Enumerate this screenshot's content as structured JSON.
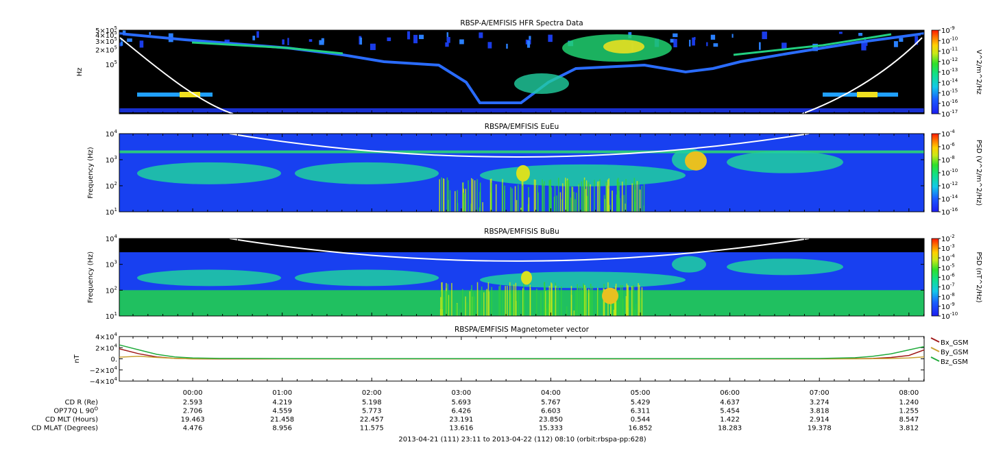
{
  "chart_data": [
    {
      "type": "heatmap",
      "title": "RBSP-A/EMFISIS  HFR Spectra Data",
      "ylabel": "Hz",
      "yscale": "log",
      "ylim": [
        10000,
        500000
      ],
      "yticks": [
        {
          "base": "5×10",
          "exp": "5",
          "value": 500000
        },
        {
          "base": "4×10",
          "exp": "5",
          "value": 400000
        },
        {
          "base": "3×10",
          "exp": "5",
          "value": 300000
        },
        {
          "base": "2×10",
          "exp": "5",
          "value": 200000
        },
        {
          "base": "10",
          "exp": "5",
          "value": 100000
        }
      ],
      "colorbar": {
        "label": "V^2/m^2/Hz",
        "scale": "log",
        "range": [
          1e-17,
          1e-09
        ],
        "ticks": [
          {
            "base": "10",
            "exp": "-9"
          },
          {
            "base": "10",
            "exp": "-10"
          },
          {
            "base": "10",
            "exp": "-11"
          },
          {
            "base": "10",
            "exp": "-12"
          },
          {
            "base": "10",
            "exp": "-13"
          },
          {
            "base": "10",
            "exp": "-14"
          },
          {
            "base": "10",
            "exp": "-15"
          },
          {
            "base": "10",
            "exp": "-16"
          },
          {
            "base": "10",
            "exp": "-17"
          }
        ]
      }
    },
    {
      "type": "heatmap",
      "title": "RBSPA/EMFISIS  EuEu",
      "ylabel": "Frequency (Hz)",
      "yscale": "log",
      "ylim": [
        10,
        10000
      ],
      "yticks": [
        {
          "base": "10",
          "exp": "4",
          "value": 10000
        },
        {
          "base": "10",
          "exp": "3",
          "value": 1000
        },
        {
          "base": "10",
          "exp": "2",
          "value": 100
        },
        {
          "base": "10",
          "exp": "1",
          "value": 10
        }
      ],
      "colorbar": {
        "label": "PSD (V^2/m^2/Hz)",
        "scale": "log",
        "range": [
          1e-16,
          0.0001
        ],
        "ticks": [
          {
            "base": "10",
            "exp": "-4"
          },
          {
            "base": "10",
            "exp": "-6"
          },
          {
            "base": "10",
            "exp": "-8"
          },
          {
            "base": "10",
            "exp": "-10"
          },
          {
            "base": "10",
            "exp": "-12"
          },
          {
            "base": "10",
            "exp": "-14"
          },
          {
            "base": "10",
            "exp": "-16"
          }
        ]
      }
    },
    {
      "type": "heatmap",
      "title": "RBSPA/EMFISIS  BuBu",
      "ylabel": "Frequency (Hz)",
      "yscale": "log",
      "ylim": [
        10,
        10000
      ],
      "yticks": [
        {
          "base": "10",
          "exp": "4",
          "value": 10000
        },
        {
          "base": "10",
          "exp": "3",
          "value": 1000
        },
        {
          "base": "10",
          "exp": "2",
          "value": 100
        },
        {
          "base": "10",
          "exp": "1",
          "value": 10
        }
      ],
      "colorbar": {
        "label": "PSD (nT^2/Hz)",
        "scale": "log",
        "range": [
          1e-10,
          0.01
        ],
        "ticks": [
          {
            "base": "10",
            "exp": "-2"
          },
          {
            "base": "10",
            "exp": "-3"
          },
          {
            "base": "10",
            "exp": "-4"
          },
          {
            "base": "10",
            "exp": "-5"
          },
          {
            "base": "10",
            "exp": "-6"
          },
          {
            "base": "10",
            "exp": "-7"
          },
          {
            "base": "10",
            "exp": "-8"
          },
          {
            "base": "10",
            "exp": "-9"
          },
          {
            "base": "10",
            "exp": "-10"
          }
        ]
      }
    },
    {
      "type": "line",
      "title": "RBSPA/EMFISIS  Magnetometer vector",
      "ylabel": "nT",
      "ylim": [
        -40000,
        40000
      ],
      "yticks": [
        {
          "base": "4×10",
          "exp": "4",
          "value": 40000
        },
        {
          "base": "2×10",
          "exp": "4",
          "value": 20000
        },
        {
          "base": "0.",
          "exp": "",
          "value": 0
        },
        {
          "base": "−2×10",
          "exp": "4",
          "value": -20000
        },
        {
          "base": "−4×10",
          "exp": "4",
          "value": -40000
        }
      ],
      "x": [
        -0.82,
        -0.6,
        -0.4,
        -0.2,
        0.0,
        0.3,
        1,
        2,
        3,
        4,
        5,
        6,
        7,
        7.4,
        7.6,
        7.8,
        8.0,
        8.17
      ],
      "series": [
        {
          "name": "Bx_GSM",
          "color": "#a01818",
          "values": [
            18000,
            9000,
            3500,
            800,
            0,
            -200,
            0,
            0,
            0,
            0,
            0,
            0,
            0,
            200,
            800,
            2500,
            6000,
            16000
          ]
        },
        {
          "name": "By_GSM",
          "color": "#c8a030",
          "values": [
            3000,
            4500,
            2500,
            800,
            0,
            0,
            0,
            0,
            0,
            0,
            0,
            0,
            0,
            0,
            300,
            600,
            1500,
            3500
          ]
        },
        {
          "name": "Bz_GSM",
          "color": "#1faa3a",
          "values": [
            25000,
            16000,
            8000,
            3500,
            1500,
            800,
            500,
            300,
            300,
            300,
            300,
            300,
            600,
            2000,
            4500,
            9000,
            16000,
            22000
          ]
        }
      ]
    }
  ],
  "xaxis": {
    "range_hours": [
      -0.82,
      8.17
    ],
    "ticks": [
      {
        "label": "00:00",
        "hours": 0
      },
      {
        "label": "01:00",
        "hours": 1
      },
      {
        "label": "02:00",
        "hours": 2
      },
      {
        "label": "03:00",
        "hours": 3
      },
      {
        "label": "04:00",
        "hours": 4
      },
      {
        "label": "05:00",
        "hours": 5
      },
      {
        "label": "06:00",
        "hours": 6
      },
      {
        "label": "07:00",
        "hours": 7
      },
      {
        "label": "08:00",
        "hours": 8
      }
    ]
  },
  "ephemeris": [
    {
      "label": "CD R (Re)",
      "values": [
        "2.593",
        "4.219",
        "5.198",
        "5.693",
        "5.767",
        "5.429",
        "4.637",
        "3.274",
        "1.240"
      ]
    },
    {
      "label": "OP77Q L 90",
      "label_sup": "O",
      "values": [
        "2.706",
        "4.559",
        "5.773",
        "6.426",
        "6.603",
        "6.311",
        "5.454",
        "3.818",
        "1.255"
      ]
    },
    {
      "label": "CD MLT (Hours)",
      "values": [
        "19.463",
        "21.458",
        "22.457",
        "23.191",
        "23.850",
        "0.544",
        "1.422",
        "2.914",
        "8.547"
      ]
    },
    {
      "label": "CD MLAT (Degrees)",
      "values": [
        "4.476",
        "8.956",
        "11.575",
        "13.616",
        "15.333",
        "16.852",
        "18.283",
        "19.378",
        "3.812"
      ]
    }
  ],
  "footer": "2013-04-21 (111) 23:11 to 2013-04-22 (112) 08:10 (orbit:rbspa-pp:628)"
}
